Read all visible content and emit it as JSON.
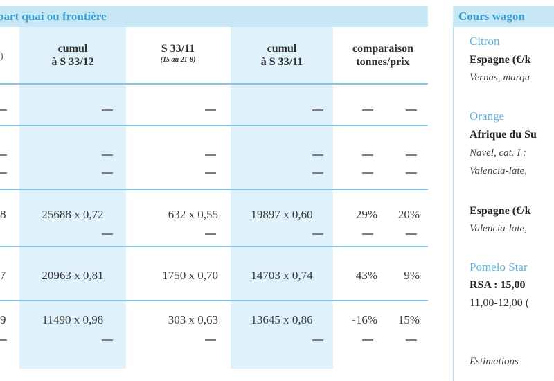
{
  "left_panel": {
    "header": "part quai ou frontière",
    "columns": [
      {
        "line1": "cumul",
        "line2": "à S 33/12",
        "sub": ""
      },
      {
        "line1": "S 33/11",
        "line2": "",
        "sub": "(15 au 21-8)"
      },
      {
        "line1": "cumul",
        "line2": "à S 33/11",
        "sub": ""
      },
      {
        "line1": "comparaison",
        "line2": "tonnes/prix",
        "sub": ""
      }
    ],
    "rows": [
      {
        "edge": "",
        "cumul12": "",
        "s3311": "",
        "cumul11": "",
        "cmp_t": "",
        "cmp_p": ""
      },
      {
        "edge": "",
        "cumul12": "",
        "s3311": "",
        "cumul11": "",
        "cmp_t": "",
        "cmp_p": ""
      },
      {
        "edge": "8",
        "cumul12": "25688 x 0,72",
        "s3311": "632 x 0,55",
        "cumul11": "19897 x 0,60",
        "cmp_t": "29%",
        "cmp_p": "20%"
      },
      {
        "edge": "7",
        "cumul12": "20963 x 0,81",
        "s3311": "1750 x 0,70",
        "cumul11": "14703 x 0,74",
        "cmp_t": "43%",
        "cmp_p": "9%"
      },
      {
        "edge": "9",
        "cumul12": "11490 x 0,98",
        "s3311": "303 x 0,63",
        "cumul11": "13645 x 0,86",
        "cmp_t": "-16%",
        "cmp_p": "15%"
      }
    ]
  },
  "right_panel": {
    "header": "Cours wagon",
    "lines": [
      {
        "text": "Citron",
        "style": "title"
      },
      {
        "text": "Espagne (€/k",
        "style": "bold"
      },
      {
        "text": "Vernas, marqu",
        "style": "italic"
      },
      {
        "text": "Orange",
        "style": "title"
      },
      {
        "text": "Afrique du Su",
        "style": "bold"
      },
      {
        "text": "Navel, cat. I :",
        "style": "italic"
      },
      {
        "text": "Valencia-late,",
        "style": "italic"
      },
      {
        "text": "Espagne (€/k",
        "style": "bold"
      },
      {
        "text": "Valencia-late,",
        "style": "italic"
      },
      {
        "text": "Pomelo Star",
        "style": "title"
      },
      {
        "text": "RSA  :  15,00",
        "style": "bold"
      },
      {
        "text": "11,00-12,00 (",
        "style": "plain"
      },
      {
        "text": "Estimations",
        "style": "italic"
      }
    ]
  },
  "colors": {
    "header_bg": "#c8e7f5",
    "header_text": "#3a9fd2",
    "band": "#dff1fa",
    "rule": "#86c4e6"
  }
}
